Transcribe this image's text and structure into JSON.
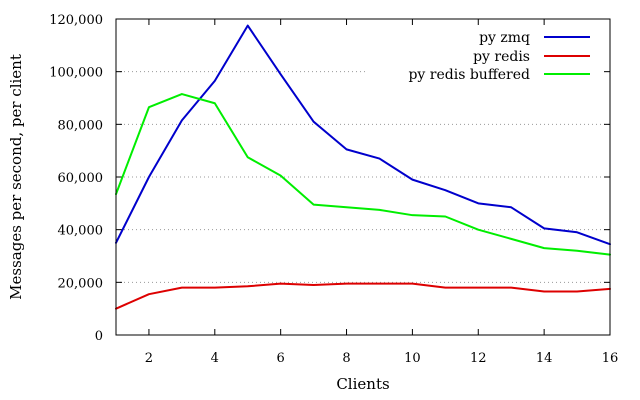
{
  "chart_data": {
    "type": "line",
    "title": "",
    "xlabel": "Clients",
    "ylabel": "Messages per second, per client",
    "xlim": [
      1,
      16
    ],
    "ylim": [
      0,
      120000
    ],
    "xticks": [
      2,
      4,
      6,
      8,
      10,
      12,
      14,
      16
    ],
    "yticks": [
      0,
      20000,
      40000,
      60000,
      80000,
      100000,
      120000
    ],
    "xtick_labels": [
      "2",
      "4",
      "6",
      "8",
      "10",
      "12",
      "14",
      "16"
    ],
    "ytick_labels": [
      "0",
      "20,000",
      "40,000",
      "60,000",
      "80,000",
      "100,000",
      "120,000"
    ],
    "grid": true,
    "legend_position": "top-right",
    "x": [
      1,
      2,
      3,
      4,
      5,
      6,
      7,
      8,
      9,
      10,
      11,
      12,
      13,
      14,
      15,
      16
    ],
    "series": [
      {
        "name": "py zmq",
        "color": "#0000cc",
        "values": [
          35000,
          60000,
          81500,
          96500,
          117500,
          99000,
          81000,
          70500,
          67000,
          59000,
          55000,
          50000,
          48500,
          40500,
          39000,
          34500
        ]
      },
      {
        "name": "py redis",
        "color": "#dd0000",
        "values": [
          10000,
          15500,
          18000,
          18000,
          18500,
          19500,
          19000,
          19500,
          19500,
          19500,
          18000,
          18000,
          18000,
          16500,
          16500,
          17500
        ]
      },
      {
        "name": "py redis buffered",
        "color": "#00ee00",
        "values": [
          53500,
          86500,
          91500,
          88000,
          67500,
          60500,
          49500,
          48500,
          47500,
          45500,
          45000,
          40000,
          36500,
          33000,
          32000,
          30500
        ]
      }
    ]
  }
}
